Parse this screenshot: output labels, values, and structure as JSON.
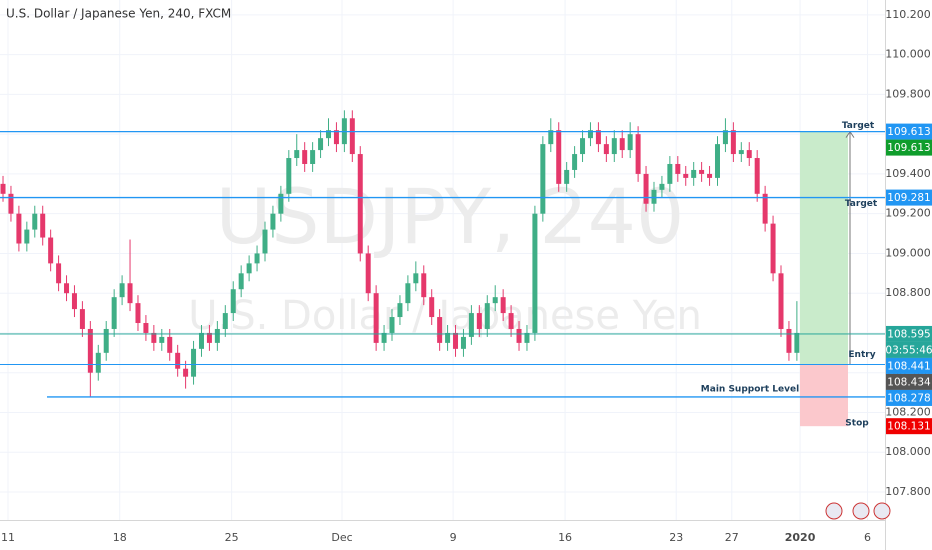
{
  "chart_data": {
    "type": "candlestick",
    "title": "U.S. Dollar / Japanese Yen, 240, FXCM",
    "watermark": "USDJPY, 240",
    "watermark_subtitle": "U.S. Dollar / Japanese Yen",
    "up_color": "#3fae86",
    "down_color": "#e5386b",
    "grid": true,
    "xlim": [
      -0.38,
      111.1
    ],
    "xticks": [
      {
        "value": 0.63,
        "label": "11"
      },
      {
        "value": 14.7,
        "label": "18"
      },
      {
        "value": 28.8,
        "label": "25"
      },
      {
        "value": 42.7,
        "label": "Dec"
      },
      {
        "value": 56.7,
        "label": "9"
      },
      {
        "value": 70.8,
        "label": "16"
      },
      {
        "value": 84.8,
        "label": "23"
      },
      {
        "value": 91.8,
        "label": "27"
      },
      {
        "value": 100.4,
        "label": "2020"
      },
      {
        "value": 108.9,
        "label": "6"
      }
    ],
    "ylim": [
      107.659,
      110.275
    ],
    "yticks": [
      {
        "value": 107.8,
        "label": "107.800"
      },
      {
        "value": 108.0,
        "label": "108.000"
      },
      {
        "value": 108.2,
        "label": "108.200"
      },
      {
        "value": 108.4,
        "label": "108.400"
      },
      {
        "value": 108.6,
        "label": "108.600"
      },
      {
        "value": 108.8,
        "label": "108.800"
      },
      {
        "value": 109.0,
        "label": "109.000"
      },
      {
        "value": 109.2,
        "label": "109.200"
      },
      {
        "value": 109.4,
        "label": "109.400"
      },
      {
        "value": 109.6,
        "label": "109.600"
      },
      {
        "value": 109.8,
        "label": "109.800"
      },
      {
        "value": 110.0,
        "label": "110.000"
      },
      {
        "value": 110.2,
        "label": "110.200"
      }
    ],
    "open": [
      109.35,
      109.3,
      109.2,
      109.05,
      109.12,
      109.2,
      109.08,
      108.95,
      108.85,
      108.8,
      108.72,
      108.62,
      108.4,
      108.5,
      108.62,
      108.78,
      108.85,
      108.75,
      108.65,
      108.6,
      108.55,
      108.58,
      108.5,
      108.42,
      108.38,
      108.52,
      108.6,
      108.55,
      108.62,
      108.7,
      108.82,
      108.9,
      108.95,
      109.0,
      109.12,
      109.2,
      109.3,
      109.48,
      109.52,
      109.45,
      109.52,
      109.58,
      109.62,
      109.55,
      109.68,
      109.5,
      109.0,
      108.8,
      108.55,
      108.6,
      108.68,
      108.75,
      108.85,
      108.9,
      108.78,
      108.68,
      108.55,
      108.6,
      108.52,
      108.58,
      108.7,
      108.62,
      108.75,
      108.78,
      108.7,
      108.62,
      108.55,
      108.6,
      109.2,
      109.55,
      109.62,
      109.35,
      109.42,
      109.5,
      109.58,
      109.62,
      109.55,
      109.5,
      109.58,
      109.52,
      109.6,
      109.4,
      109.25,
      109.32,
      109.35,
      109.45,
      109.4,
      109.38,
      109.42,
      109.4,
      109.38,
      109.55,
      109.62,
      109.5,
      109.52,
      109.48,
      109.3,
      109.15,
      108.9,
      108.62,
      108.5
    ],
    "high": [
      109.39,
      109.34,
      109.24,
      109.16,
      109.24,
      109.24,
      109.12,
      108.99,
      108.89,
      108.84,
      108.76,
      108.66,
      108.54,
      108.66,
      108.82,
      108.89,
      109.07,
      108.79,
      108.69,
      108.64,
      108.62,
      108.62,
      108.54,
      108.46,
      108.56,
      108.64,
      108.64,
      108.66,
      108.74,
      108.86,
      108.94,
      108.99,
      109.04,
      109.16,
      109.24,
      109.34,
      109.52,
      109.6,
      109.56,
      109.56,
      109.62,
      109.68,
      109.66,
      109.72,
      109.72,
      109.54,
      109.04,
      108.84,
      108.64,
      108.72,
      108.79,
      108.89,
      108.96,
      108.94,
      108.82,
      108.72,
      108.64,
      108.64,
      108.62,
      108.74,
      108.74,
      108.79,
      108.84,
      108.82,
      108.74,
      108.66,
      108.64,
      109.24,
      109.59,
      109.68,
      109.66,
      109.46,
      109.54,
      109.62,
      109.66,
      109.66,
      109.59,
      109.62,
      109.62,
      109.66,
      109.64,
      109.44,
      109.36,
      109.39,
      109.49,
      109.49,
      109.44,
      109.46,
      109.46,
      109.44,
      109.59,
      109.68,
      109.66,
      109.56,
      109.56,
      109.52,
      109.34,
      109.19,
      108.94,
      108.66,
      108.76
    ],
    "low": [
      109.26,
      109.16,
      109.01,
      109.01,
      109.08,
      109.04,
      108.91,
      108.81,
      108.76,
      108.68,
      108.58,
      108.28,
      108.36,
      108.46,
      108.58,
      108.74,
      108.71,
      108.61,
      108.56,
      108.51,
      108.51,
      108.46,
      108.38,
      108.32,
      108.34,
      108.48,
      108.51,
      108.51,
      108.58,
      108.66,
      108.78,
      108.86,
      108.91,
      108.96,
      109.08,
      109.16,
      109.26,
      109.44,
      109.41,
      109.41,
      109.48,
      109.54,
      109.51,
      109.51,
      109.46,
      108.96,
      108.76,
      108.51,
      108.51,
      108.56,
      108.64,
      108.71,
      108.81,
      108.74,
      108.64,
      108.51,
      108.51,
      108.48,
      108.48,
      108.54,
      108.58,
      108.58,
      108.71,
      108.66,
      108.58,
      108.51,
      108.51,
      108.56,
      109.16,
      109.51,
      109.31,
      109.31,
      109.38,
      109.46,
      109.54,
      109.51,
      109.46,
      109.46,
      109.48,
      109.48,
      109.36,
      109.21,
      109.21,
      109.28,
      109.31,
      109.36,
      109.34,
      109.34,
      109.36,
      109.34,
      109.34,
      109.51,
      109.46,
      109.46,
      109.44,
      109.26,
      109.11,
      108.86,
      108.58,
      108.46,
      108.46
    ],
    "close": [
      109.3,
      109.2,
      109.05,
      109.12,
      109.2,
      109.08,
      108.95,
      108.85,
      108.8,
      108.72,
      108.62,
      108.4,
      108.5,
      108.62,
      108.78,
      108.85,
      108.75,
      108.65,
      108.6,
      108.55,
      108.58,
      108.5,
      108.42,
      108.38,
      108.52,
      108.6,
      108.55,
      108.62,
      108.7,
      108.82,
      108.9,
      108.95,
      109.0,
      109.12,
      109.2,
      109.3,
      109.48,
      109.52,
      109.45,
      109.52,
      109.58,
      109.62,
      109.55,
      109.68,
      109.5,
      109.0,
      108.8,
      108.55,
      108.6,
      108.68,
      108.75,
      108.85,
      108.9,
      108.78,
      108.68,
      108.55,
      108.6,
      108.52,
      108.58,
      108.7,
      108.62,
      108.75,
      108.78,
      108.7,
      108.62,
      108.55,
      108.6,
      109.2,
      109.55,
      109.62,
      109.35,
      109.42,
      109.5,
      109.58,
      109.62,
      109.55,
      109.5,
      109.58,
      109.52,
      109.6,
      109.4,
      109.25,
      109.32,
      109.35,
      109.45,
      109.4,
      109.38,
      109.42,
      109.4,
      109.38,
      109.55,
      109.62,
      109.5,
      109.52,
      109.48,
      109.3,
      109.15,
      108.9,
      108.62,
      108.5,
      108.6
    ],
    "lines": [
      {
        "value": 109.613,
        "color": "#2196f3"
      },
      {
        "value": 109.281,
        "color": "#2196f3",
        "label": "Target"
      },
      {
        "value": 108.595,
        "color": "#26a69a"
      },
      {
        "value": 108.441,
        "color": "#2196f3"
      },
      {
        "value": 108.278,
        "color": "#2196f3",
        "label": "Main Support Level"
      }
    ],
    "position": {
      "target": 109.613,
      "entry": 108.441,
      "stop": 108.131,
      "target_label": "Target",
      "entry_label": "Entry",
      "stop_label": "Stop"
    },
    "price_tags": [
      {
        "value": 109.613,
        "color": "#2196f3"
      },
      {
        "value": 109.613,
        "color": "#0f9d2c"
      },
      {
        "value": 109.281,
        "color": "#2196f3"
      },
      {
        "value": 108.595,
        "color": "#26a69a",
        "countdown": "03:55:46"
      },
      {
        "value": 108.441,
        "color": "#2196f3"
      },
      {
        "value": 108.434,
        "color": "#555555"
      },
      {
        "value": 108.278,
        "color": "#2196f3"
      },
      {
        "value": 108.131,
        "color": "#f00000"
      }
    ]
  }
}
